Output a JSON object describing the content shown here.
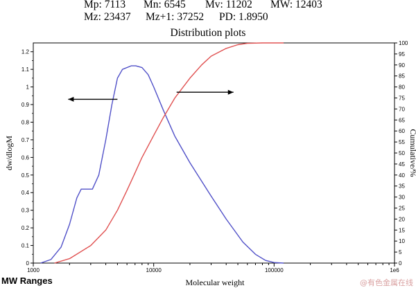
{
  "stats": {
    "mp": "Mp: 7113",
    "mn": "Mn: 6545",
    "mv": "Mv: 11202",
    "mw": "MW: 12403",
    "mz": "Mz: 23437",
    "mz1": "Mz+1: 37252",
    "pd": "PD: 1.8950"
  },
  "footer": {
    "mw_ranges_label": "MW Ranges",
    "watermark": "@有色金属在线"
  },
  "chart_data": {
    "type": "line",
    "title": "Distribution plots",
    "xlabel": "Molecular weight",
    "ylabel_left": "dw/dlogM",
    "ylabel_right": "Cumulative/%",
    "x_scale": "log",
    "xlim": [
      1000,
      1000000
    ],
    "x_tick_labels": [
      "1000",
      "10000",
      "100000",
      "1e6"
    ],
    "ylim_left": [
      0,
      1.25
    ],
    "y_left_ticks": [
      "0",
      "0.1",
      "0.2",
      "0.3",
      "0.4",
      "0.5",
      "0.6",
      "0.7",
      "0.8",
      "0.9",
      "1",
      "1.1",
      "1.2"
    ],
    "ylim_right": [
      0,
      100
    ],
    "y_right_ticks": [
      "0",
      "5",
      "10",
      "15",
      "20",
      "25",
      "30",
      "35",
      "40",
      "45",
      "50",
      "55",
      "60",
      "65",
      "70",
      "75",
      "80",
      "85",
      "90",
      "95",
      "100"
    ],
    "grid": false,
    "series": [
      {
        "axis": "left",
        "color": "#5050c8",
        "points": [
          [
            1150,
            0
          ],
          [
            1400,
            0.02
          ],
          [
            1700,
            0.09
          ],
          [
            2000,
            0.22
          ],
          [
            2300,
            0.37
          ],
          [
            2500,
            0.42
          ],
          [
            2800,
            0.42
          ],
          [
            3100,
            0.42
          ],
          [
            3500,
            0.5
          ],
          [
            4000,
            0.7
          ],
          [
            4500,
            0.9
          ],
          [
            5000,
            1.05
          ],
          [
            5500,
            1.1
          ],
          [
            6500,
            1.12
          ],
          [
            7100,
            1.12
          ],
          [
            8000,
            1.11
          ],
          [
            9000,
            1.07
          ],
          [
            10000,
            1.0
          ],
          [
            12000,
            0.87
          ],
          [
            15000,
            0.72
          ],
          [
            20000,
            0.57
          ],
          [
            30000,
            0.38
          ],
          [
            40000,
            0.25
          ],
          [
            55000,
            0.12
          ],
          [
            70000,
            0.05
          ],
          [
            85000,
            0.015
          ],
          [
            100000,
            0.003
          ],
          [
            120000,
            0
          ]
        ]
      },
      {
        "axis": "right",
        "color": "#e05050",
        "points": [
          [
            1500,
            0
          ],
          [
            2000,
            2
          ],
          [
            3000,
            8
          ],
          [
            4000,
            15
          ],
          [
            5000,
            24
          ],
          [
            6000,
            33
          ],
          [
            7000,
            41
          ],
          [
            8000,
            48
          ],
          [
            10000,
            58
          ],
          [
            12000,
            66
          ],
          [
            15000,
            75
          ],
          [
            20000,
            84
          ],
          [
            25000,
            90
          ],
          [
            30000,
            94
          ],
          [
            40000,
            97.5
          ],
          [
            50000,
            99.2
          ],
          [
            60000,
            99.8
          ],
          [
            80000,
            100
          ],
          [
            120000,
            100
          ]
        ]
      }
    ],
    "annotations": [
      {
        "type": "arrow",
        "direction": "left",
        "x_from": 5000,
        "x_to": 1950,
        "y": 0.93,
        "axis": "left"
      },
      {
        "type": "arrow",
        "direction": "right",
        "x_from": 15500,
        "x_to": 46000,
        "y": 0.97,
        "axis": "left"
      }
    ]
  }
}
